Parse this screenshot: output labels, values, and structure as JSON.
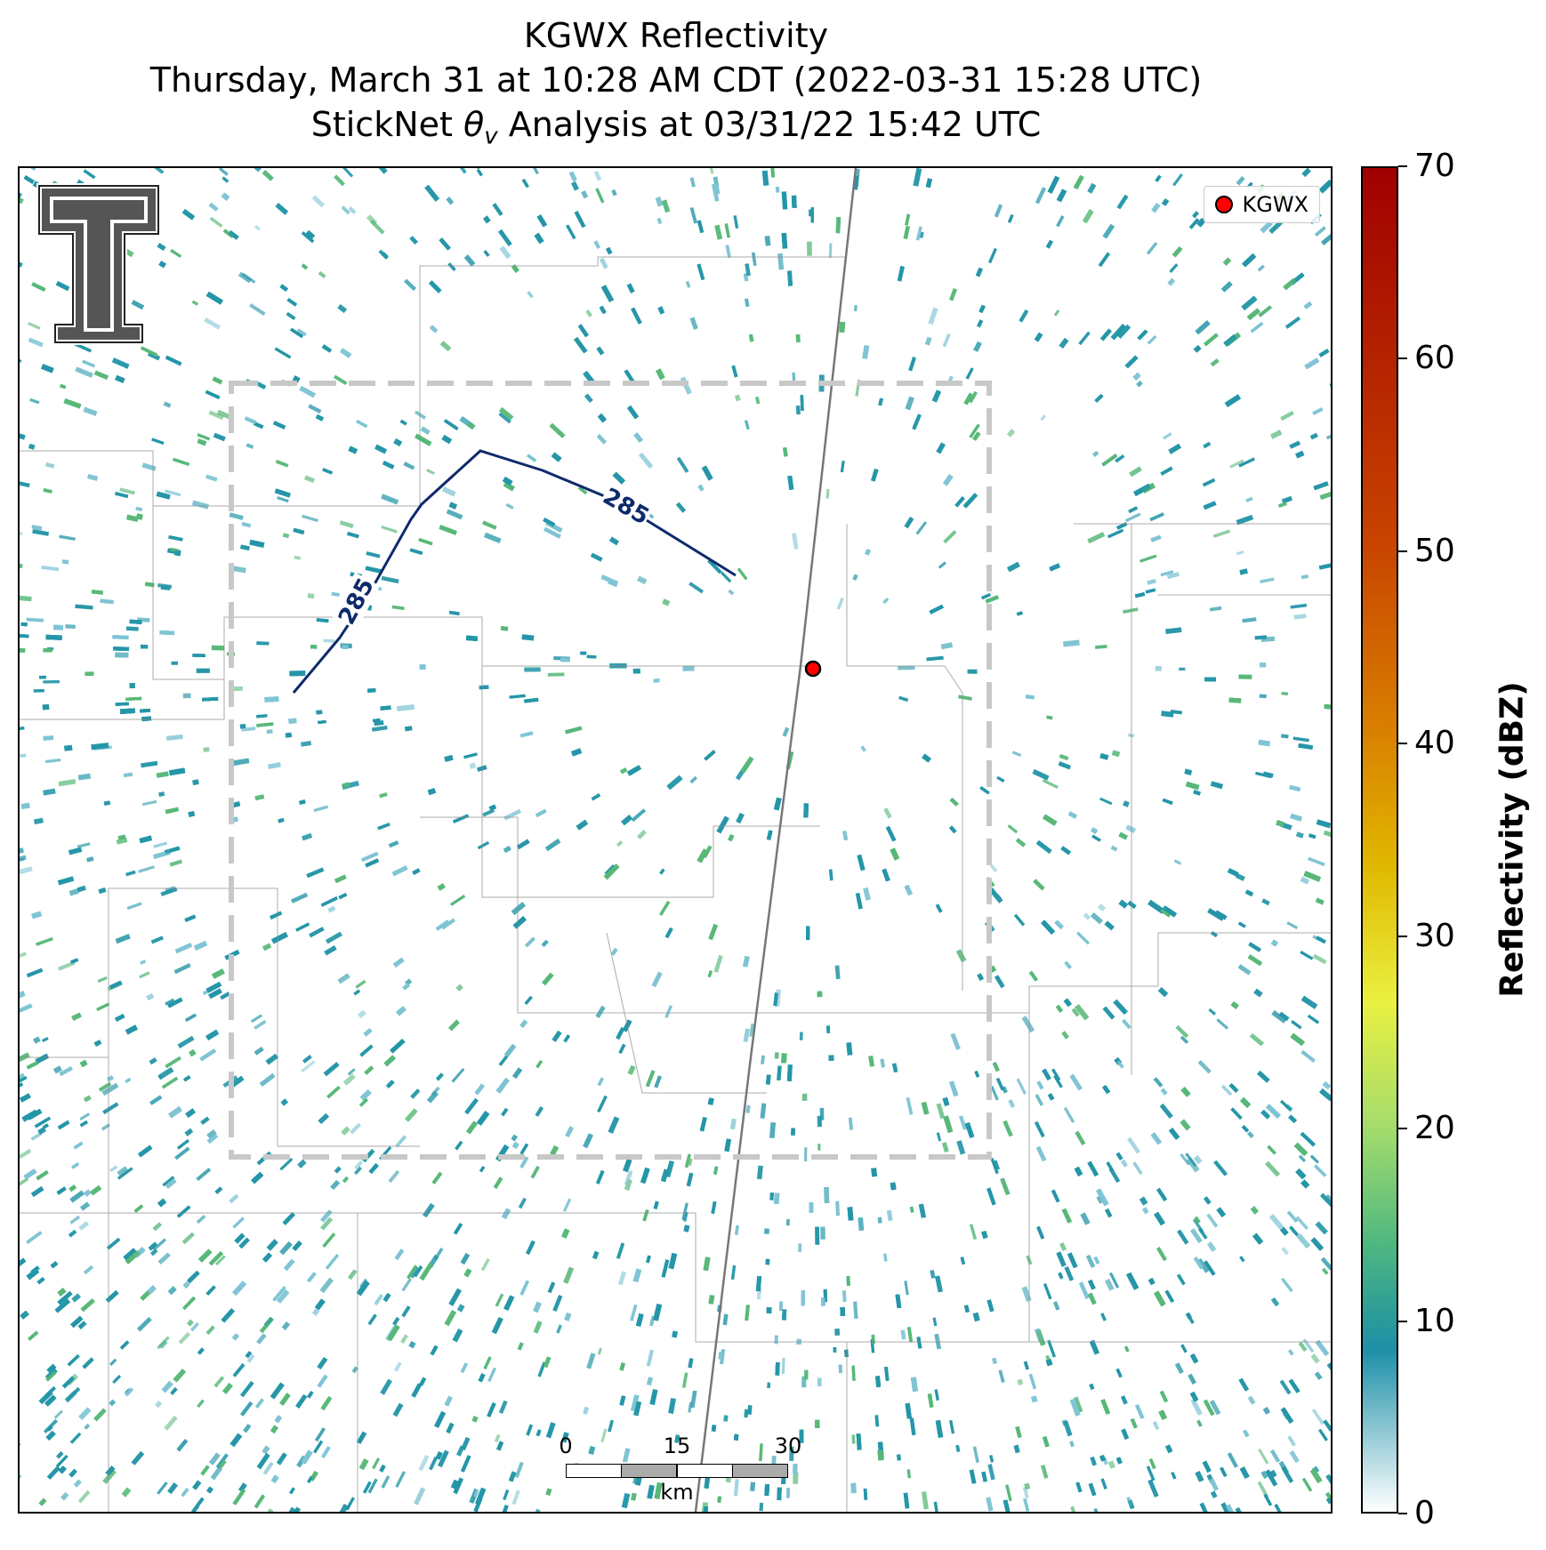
{
  "title": {
    "line1": "KGWX Reflectivity",
    "line2": "Thursday, March 31 at 10:28 AM CDT (2022-03-31 15:28 UTC)",
    "line3": "StickNet θv Analysis at 03/31/22 15:42 UTC"
  },
  "legend": {
    "label": "KGWX",
    "marker_color": "#ff0000"
  },
  "contours": [
    {
      "label": "285",
      "color": "#0d2a6b"
    }
  ],
  "colorbar": {
    "label": "Reflectivity (dBZ)",
    "min": 0,
    "max": 70,
    "ticks": [
      "0",
      "10",
      "20",
      "30",
      "40",
      "50",
      "60",
      "70"
    ]
  },
  "scalebar": {
    "ticks": [
      "0",
      "15",
      "30"
    ],
    "unit": "km"
  },
  "logo": "texas-tech-double-t-logo",
  "colors": {
    "echo": "#2596a8",
    "echo_light": "#7fc4d4",
    "echo_green": "#58b878",
    "box": "#c8c8c8"
  }
}
